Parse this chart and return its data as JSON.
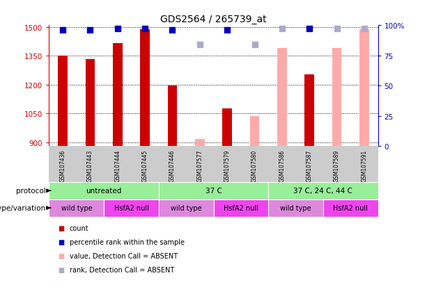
{
  "title": "GDS2564 / 265739_at",
  "samples": [
    "GSM107436",
    "GSM107443",
    "GSM107444",
    "GSM107445",
    "GSM107446",
    "GSM107577",
    "GSM107579",
    "GSM107580",
    "GSM107586",
    "GSM107587",
    "GSM107589",
    "GSM107591"
  ],
  "count_values": [
    1350,
    1335,
    1415,
    1490,
    1195,
    null,
    1075,
    null,
    null,
    1255,
    null,
    null
  ],
  "count_absent": [
    null,
    null,
    null,
    null,
    null,
    915,
    null,
    1035,
    1390,
    null,
    1390,
    1490
  ],
  "rank_present": [
    96,
    96,
    97,
    97,
    96,
    null,
    96,
    null,
    null,
    97,
    null,
    null
  ],
  "rank_absent": [
    null,
    null,
    null,
    null,
    null,
    84,
    null,
    84,
    97,
    null,
    97,
    97
  ],
  "ylim_left": [
    880,
    1510
  ],
  "ylim_right": [
    0,
    100
  ],
  "yticks_left": [
    900,
    1050,
    1200,
    1350,
    1500
  ],
  "yticks_right": [
    0,
    25,
    50,
    75,
    100
  ],
  "protocol_groups": [
    {
      "label": "untreated",
      "start": 0,
      "end": 4
    },
    {
      "label": "37 C",
      "start": 4,
      "end": 8
    },
    {
      "label": "37 C, 24 C, 44 C",
      "start": 8,
      "end": 12
    }
  ],
  "genotype_groups": [
    {
      "label": "wild type",
      "start": 0,
      "end": 2
    },
    {
      "label": "HsfA2 null",
      "start": 2,
      "end": 4
    },
    {
      "label": "wild type",
      "start": 4,
      "end": 6
    },
    {
      "label": "HsfA2 null",
      "start": 6,
      "end": 8
    },
    {
      "label": "wild type",
      "start": 8,
      "end": 10
    },
    {
      "label": "HsfA2 null",
      "start": 10,
      "end": 12
    }
  ],
  "protocol_color": "#99ee99",
  "genotype_color_wild": "#dd88dd",
  "genotype_color_null": "#ee44ee",
  "bar_color_present": "#cc0000",
  "bar_color_absent": "#ffaaaa",
  "dot_color_present": "#0000bb",
  "dot_color_absent": "#aaaacc",
  "bar_width": 0.35,
  "dot_size": 28,
  "background_color": "#ffffff",
  "sample_bg_color": "#cccccc"
}
